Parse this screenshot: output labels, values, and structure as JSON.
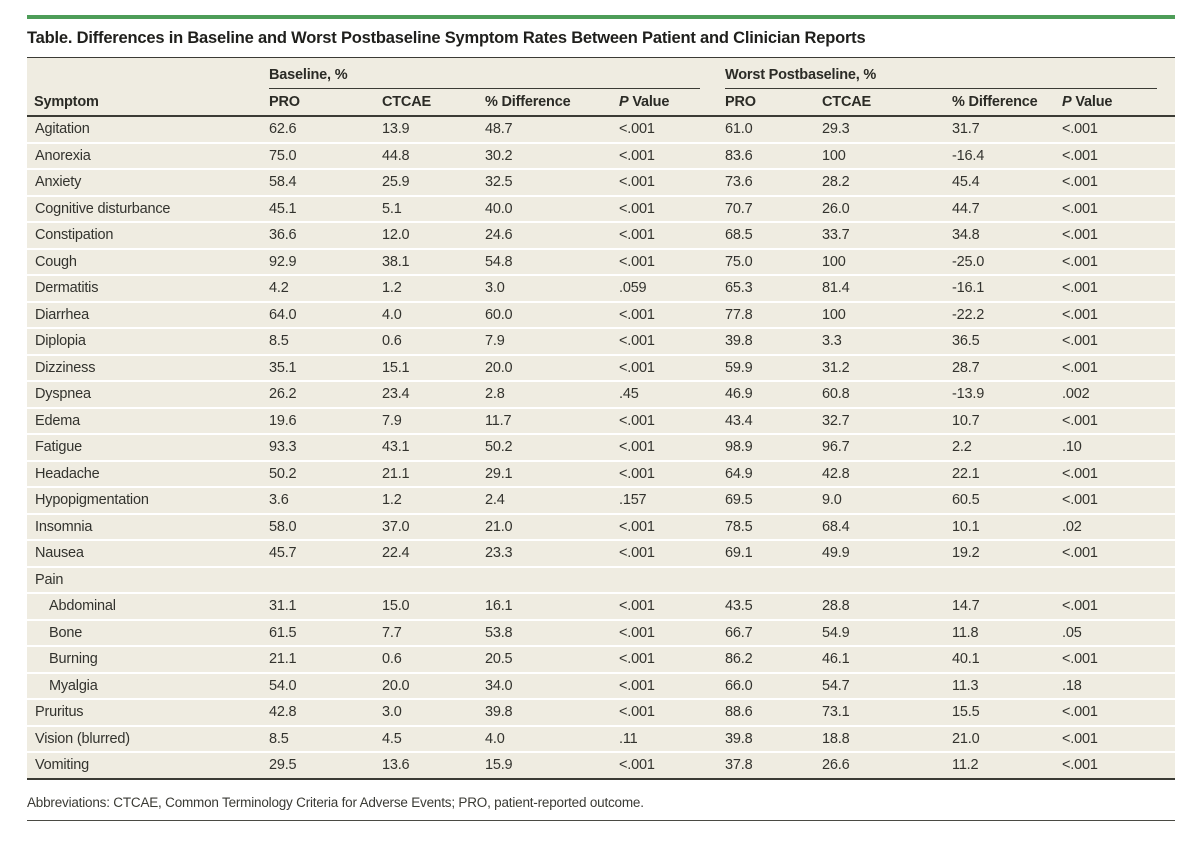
{
  "title": "Table. Differences in Baseline and Worst Postbaseline Symptom Rates Between Patient and Clinician Reports",
  "table": {
    "groups": [
      {
        "label": "Baseline, %",
        "span": 4
      },
      {
        "label": "Worst Postbaseline, %",
        "span": 4
      }
    ],
    "columns": [
      "Symptom",
      "PRO",
      "CTCAE",
      "% Difference",
      "P Value",
      "PRO",
      "CTCAE",
      "% Difference",
      "P Value"
    ],
    "rows": [
      {
        "label": "Agitation",
        "indent": false,
        "values": [
          "62.6",
          "13.9",
          "48.7",
          "<.001",
          "61.0",
          "29.3",
          "31.7",
          "<.001"
        ]
      },
      {
        "label": "Anorexia",
        "indent": false,
        "values": [
          "75.0",
          "44.8",
          "30.2",
          "<.001",
          "83.6",
          "100",
          "-16.4",
          "<.001"
        ]
      },
      {
        "label": "Anxiety",
        "indent": false,
        "values": [
          "58.4",
          "25.9",
          "32.5",
          "<.001",
          "73.6",
          "28.2",
          "45.4",
          "<.001"
        ]
      },
      {
        "label": "Cognitive disturbance",
        "indent": false,
        "values": [
          "45.1",
          "5.1",
          "40.0",
          "<.001",
          "70.7",
          "26.0",
          "44.7",
          "<.001"
        ]
      },
      {
        "label": "Constipation",
        "indent": false,
        "values": [
          "36.6",
          "12.0",
          "24.6",
          "<.001",
          "68.5",
          "33.7",
          "34.8",
          "<.001"
        ]
      },
      {
        "label": "Cough",
        "indent": false,
        "values": [
          "92.9",
          "38.1",
          "54.8",
          "<.001",
          "75.0",
          "100",
          "-25.0",
          "<.001"
        ]
      },
      {
        "label": "Dermatitis",
        "indent": false,
        "values": [
          "4.2",
          "1.2",
          "3.0",
          ".059",
          "65.3",
          "81.4",
          "-16.1",
          "<.001"
        ]
      },
      {
        "label": "Diarrhea",
        "indent": false,
        "values": [
          "64.0",
          "4.0",
          "60.0",
          "<.001",
          "77.8",
          "100",
          "-22.2",
          "<.001"
        ]
      },
      {
        "label": "Diplopia",
        "indent": false,
        "values": [
          "8.5",
          "0.6",
          "7.9",
          "<.001",
          "39.8",
          "3.3",
          "36.5",
          "<.001"
        ]
      },
      {
        "label": "Dizziness",
        "indent": false,
        "values": [
          "35.1",
          "15.1",
          "20.0",
          "<.001",
          "59.9",
          "31.2",
          "28.7",
          "<.001"
        ]
      },
      {
        "label": "Dyspnea",
        "indent": false,
        "values": [
          "26.2",
          "23.4",
          "2.8",
          ".45",
          "46.9",
          "60.8",
          "-13.9",
          ".002"
        ]
      },
      {
        "label": "Edema",
        "indent": false,
        "values": [
          "19.6",
          "7.9",
          "11.7",
          "<.001",
          "43.4",
          "32.7",
          "10.7",
          "<.001"
        ]
      },
      {
        "label": "Fatigue",
        "indent": false,
        "values": [
          "93.3",
          "43.1",
          "50.2",
          "<.001",
          "98.9",
          "96.7",
          "2.2",
          ".10"
        ]
      },
      {
        "label": "Headache",
        "indent": false,
        "values": [
          "50.2",
          "21.1",
          "29.1",
          "<.001",
          "64.9",
          "42.8",
          "22.1",
          "<.001"
        ]
      },
      {
        "label": "Hypopigmentation",
        "indent": false,
        "values": [
          "3.6",
          "1.2",
          "2.4",
          ".157",
          "69.5",
          "9.0",
          "60.5",
          "<.001"
        ]
      },
      {
        "label": "Insomnia",
        "indent": false,
        "values": [
          "58.0",
          "37.0",
          "21.0",
          "<.001",
          "78.5",
          "68.4",
          "10.1",
          ".02"
        ]
      },
      {
        "label": "Nausea",
        "indent": false,
        "values": [
          "45.7",
          "22.4",
          "23.3",
          "<.001",
          "69.1",
          "49.9",
          "19.2",
          "<.001"
        ]
      },
      {
        "label": "Pain",
        "indent": false,
        "values": [
          "",
          "",
          "",
          "",
          "",
          "",
          "",
          ""
        ]
      },
      {
        "label": "Abdominal",
        "indent": true,
        "values": [
          "31.1",
          "15.0",
          "16.1",
          "<.001",
          "43.5",
          "28.8",
          "14.7",
          "<.001"
        ]
      },
      {
        "label": "Bone",
        "indent": true,
        "values": [
          "61.5",
          "7.7",
          "53.8",
          "<.001",
          "66.7",
          "54.9",
          "11.8",
          ".05"
        ]
      },
      {
        "label": "Burning",
        "indent": true,
        "values": [
          "21.1",
          "0.6",
          "20.5",
          "<.001",
          "86.2",
          "46.1",
          "40.1",
          "<.001"
        ]
      },
      {
        "label": "Myalgia",
        "indent": true,
        "values": [
          "54.0",
          "20.0",
          "34.0",
          "<.001",
          "66.0",
          "54.7",
          "11.3",
          ".18"
        ]
      },
      {
        "label": "Pruritus",
        "indent": false,
        "values": [
          "42.8",
          "3.0",
          "39.8",
          "<.001",
          "88.6",
          "73.1",
          "15.5",
          "<.001"
        ]
      },
      {
        "label": "Vision (blurred)",
        "indent": false,
        "values": [
          "8.5",
          "4.5",
          "4.0",
          ".11",
          "39.8",
          "18.8",
          "21.0",
          "<.001"
        ]
      },
      {
        "label": "Vomiting",
        "indent": false,
        "values": [
          "29.5",
          "13.6",
          "15.9",
          "<.001",
          "37.8",
          "26.6",
          "11.2",
          "<.001"
        ]
      }
    ]
  },
  "footnote": "Abbreviations: CTCAE, Common Terminology Criteria for Adverse Events; PRO, patient-reported outcome.",
  "colors": {
    "accent_green": "#4d9d58",
    "row_beige": "#efece1",
    "rule_dark": "#3b3b35"
  }
}
